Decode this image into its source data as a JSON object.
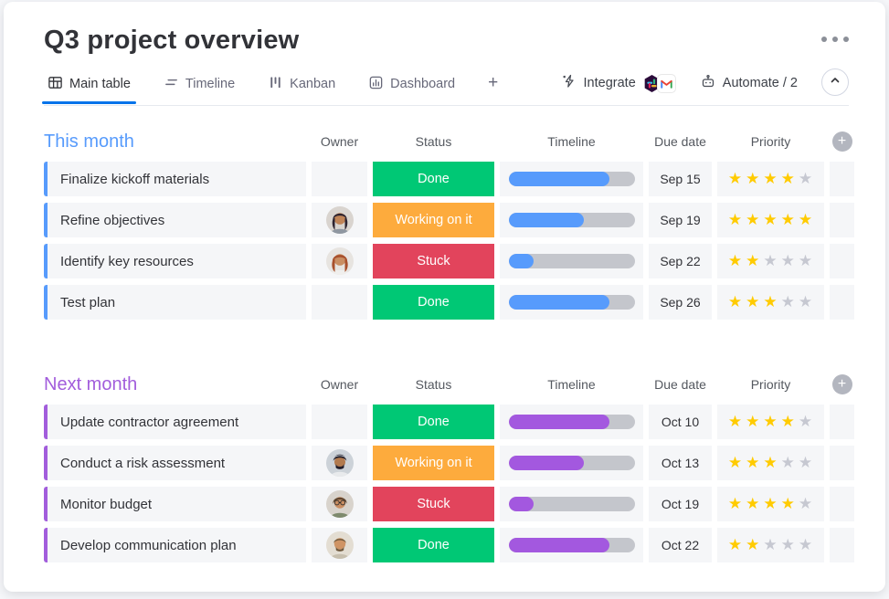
{
  "window": {
    "title": "Q3 project overview"
  },
  "tabs": [
    {
      "label": "Main table",
      "active": true
    },
    {
      "label": "Timeline",
      "active": false
    },
    {
      "label": "Kanban",
      "active": false
    },
    {
      "label": "Dashboard",
      "active": false
    },
    {
      "label": "+",
      "active": false
    }
  ],
  "toolbar": {
    "integrate": "Integrate",
    "automate": "Automate / 2"
  },
  "columns": {
    "owner": "Owner",
    "status": "Status",
    "timeline": "Timeline",
    "due": "Due date",
    "priority": "Priority",
    "add": "+"
  },
  "colors": {
    "status_done": "#00c875",
    "status_working": "#fdab3d",
    "status_stuck": "#e2445c",
    "group_blue": "#579bfc",
    "group_purple": "#a25ddc",
    "bar_blue": "#579bfc",
    "bar_purple": "#a358df",
    "bar_track": "#c4c6cc",
    "star_on": "#ffcb00",
    "star_off": "#c6c8d1",
    "tab_accent": "#0073ea"
  },
  "groups": [
    {
      "name": "This month",
      "color": "#579bfc",
      "bar_color": "#579bfc",
      "rows": [
        {
          "task": "Finalize kickoff materials",
          "owner": "",
          "status": "Done",
          "status_color": "#00c875",
          "progress": "80%",
          "due": "Sep 15",
          "priority": 4
        },
        {
          "task": "Refine objectives",
          "owner": "woman-dark-hair",
          "status": "Working on it",
          "status_color": "#fdab3d",
          "progress": "60%",
          "due": "Sep 19",
          "priority": 5
        },
        {
          "task": "Identify key resources",
          "owner": "woman-red-hair",
          "status": "Stuck",
          "status_color": "#e2445c",
          "progress": "20%",
          "due": "Sep 22",
          "priority": 2
        },
        {
          "task": "Test plan",
          "owner": "",
          "status": "Done",
          "status_color": "#00c875",
          "progress": "80%",
          "due": "Sep 26",
          "priority": 3
        }
      ]
    },
    {
      "name": "Next month",
      "color": "#a25ddc",
      "bar_color": "#a358df",
      "rows": [
        {
          "task": "Update contractor agreement",
          "owner": "",
          "status": "Done",
          "status_color": "#00c875",
          "progress": "80%",
          "due": "Oct 10",
          "priority": 4
        },
        {
          "task": "Conduct a risk assessment",
          "owner": "man-turban",
          "status": "Working on it",
          "status_color": "#fdab3d",
          "progress": "60%",
          "due": "Oct 13",
          "priority": 3
        },
        {
          "task": "Monitor budget",
          "owner": "woman-glasses",
          "status": "Stuck",
          "status_color": "#e2445c",
          "progress": "20%",
          "due": "Oct 19",
          "priority": 4
        },
        {
          "task": "Develop communication plan",
          "owner": "man-beard",
          "status": "Done",
          "status_color": "#00c875",
          "progress": "80%",
          "due": "Oct 22",
          "priority": 2
        }
      ]
    }
  ]
}
